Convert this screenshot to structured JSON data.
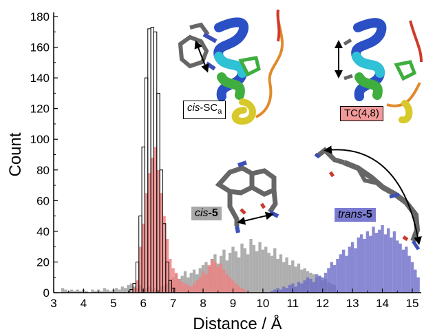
{
  "chart_data": {
    "type": "histogram",
    "xlabel": "Distance / Å",
    "ylabel": "Count",
    "xlim": [
      3,
      15.3
    ],
    "ylim": [
      0,
      180
    ],
    "xticks": [
      3,
      4,
      5,
      6,
      7,
      8,
      9,
      10,
      11,
      12,
      13,
      14,
      15
    ],
    "yticks": [
      0,
      20,
      40,
      60,
      80,
      100,
      120,
      140,
      160,
      180
    ],
    "bin_width": 0.1,
    "grid": false,
    "series": [
      {
        "label": "cis-5",
        "color": "#9a9a9a",
        "style": "filled",
        "x": [
          3.3,
          3.4,
          3.5,
          3.6,
          3.7,
          3.8,
          3.9,
          4.0,
          4.1,
          4.2,
          4.3,
          4.4,
          4.5,
          4.6,
          4.7,
          4.8,
          4.9,
          5.0,
          5.1,
          5.2,
          5.3,
          5.4,
          5.5,
          5.6,
          5.7,
          5.8,
          5.9,
          6.0,
          6.1,
          6.2,
          6.3,
          6.4,
          6.5,
          6.6,
          6.7,
          6.8,
          6.9,
          7.0,
          7.1,
          7.2,
          7.3,
          7.4,
          7.5,
          7.6,
          7.7,
          7.8,
          7.9,
          8.0,
          8.1,
          8.2,
          8.3,
          8.4,
          8.5,
          8.6,
          8.7,
          8.8,
          8.9,
          9.0,
          9.1,
          9.2,
          9.3,
          9.4,
          9.5,
          9.6,
          9.7,
          9.8,
          9.9,
          10.0,
          10.1,
          10.2,
          10.3,
          10.4,
          10.5,
          10.6,
          10.7,
          10.8,
          10.9,
          11.0,
          11.1,
          11.2,
          11.3,
          11.4,
          11.5,
          11.6,
          11.7,
          11.8,
          11.9,
          12.0,
          12.1,
          12.2,
          12.3,
          12.4
        ],
        "y": [
          3,
          2,
          1,
          2,
          1,
          2,
          1,
          2,
          1,
          0,
          2,
          1,
          2,
          1,
          3,
          2,
          1,
          2,
          3,
          2,
          4,
          3,
          5,
          6,
          4,
          3,
          5,
          2,
          3,
          4,
          2,
          3,
          2,
          4,
          5,
          6,
          8,
          10,
          12,
          9,
          11,
          14,
          10,
          13,
          15,
          12,
          16,
          18,
          20,
          17,
          22,
          25,
          19,
          24,
          28,
          21,
          26,
          30,
          27,
          23,
          32,
          29,
          25,
          35,
          31,
          27,
          33,
          28,
          30,
          26,
          24,
          29,
          22,
          25,
          20,
          23,
          18,
          21,
          17,
          19,
          15,
          16,
          14,
          13,
          12,
          10,
          11,
          8,
          9,
          7,
          6,
          5
        ]
      },
      {
        "label": "TC(4,8)",
        "color": "#ef8080",
        "style": "filled",
        "x": [
          5.7,
          5.8,
          5.9,
          6.0,
          6.1,
          6.2,
          6.3,
          6.4,
          6.5,
          6.6,
          6.7,
          6.8,
          6.9,
          7.0,
          7.1,
          7.2,
          7.3,
          7.4,
          7.5,
          7.6,
          7.7,
          7.8,
          7.9,
          8.0,
          8.1,
          8.2,
          8.3,
          8.4,
          8.5,
          8.6,
          8.7,
          8.8,
          8.9,
          9.0,
          9.1,
          9.2,
          9.3,
          9.4
        ],
        "y": [
          3,
          8,
          30,
          45,
          65,
          78,
          88,
          95,
          80,
          65,
          50,
          35,
          22,
          16,
          13,
          9,
          7,
          6,
          5,
          4,
          6,
          8,
          10,
          14,
          12,
          18,
          22,
          20,
          17,
          19,
          15,
          12,
          10,
          8,
          6,
          4,
          3,
          2
        ]
      },
      {
        "label": "trans-5",
        "color": "#6a6ac8",
        "style": "filled",
        "x": [
          10.3,
          10.4,
          10.5,
          10.6,
          10.7,
          10.8,
          10.9,
          11.0,
          11.1,
          11.2,
          11.3,
          11.4,
          11.5,
          11.6,
          11.7,
          11.8,
          11.9,
          12.0,
          12.1,
          12.2,
          12.3,
          12.4,
          12.5,
          12.6,
          12.7,
          12.8,
          12.9,
          13.0,
          13.1,
          13.2,
          13.3,
          13.4,
          13.5,
          13.6,
          13.7,
          13.8,
          13.9,
          14.0,
          14.1,
          14.2,
          14.3,
          14.4,
          14.5,
          14.6,
          14.7,
          14.8,
          14.9,
          15.0,
          15.1,
          15.2
        ],
        "y": [
          1,
          2,
          3,
          2,
          4,
          3,
          5,
          6,
          4,
          7,
          6,
          8,
          10,
          9,
          7,
          12,
          11,
          10,
          13,
          16,
          20,
          18,
          22,
          25,
          28,
          24,
          30,
          33,
          29,
          36,
          38,
          35,
          40,
          37,
          43,
          39,
          41,
          44,
          38,
          42,
          36,
          40,
          34,
          32,
          28,
          30,
          24,
          20,
          15,
          10
        ]
      },
      {
        "label": "cis-SCa",
        "color": "#000000",
        "style": "outline",
        "x": [
          5.6,
          5.7,
          5.8,
          5.9,
          6.0,
          6.1,
          6.2,
          6.3,
          6.4,
          6.5,
          6.6,
          6.7,
          6.8,
          6.9,
          7.0
        ],
        "y": [
          2,
          6,
          20,
          50,
          95,
          140,
          172,
          173,
          170,
          130,
          80,
          45,
          20,
          8,
          3
        ]
      }
    ]
  },
  "annotations": {
    "cis_sca": {
      "prefix": "cis",
      "main": "-SC",
      "sub": "a"
    },
    "tc48": "TC(4,8)",
    "cis5": {
      "prefix": "cis",
      "main": "-5"
    },
    "trans5": {
      "prefix": "trans",
      "main": "-5"
    }
  },
  "colors": {
    "helix_blue": "#2b4fc4",
    "helix_cyan": "#2fc1d6",
    "helix_green": "#3fae3f",
    "helix_yellow": "#d8c92a",
    "loop_orange": "#e08a2c",
    "loop_red": "#d13a2a",
    "stick_gray": "#666666",
    "stick_blue": "#3d4fb8",
    "stick_red": "#c83a2c",
    "tc_label_bg": "#f29a9a",
    "trans_label_bg": "#7b7bd2",
    "cis_label_bg": "#a8a8a8"
  }
}
